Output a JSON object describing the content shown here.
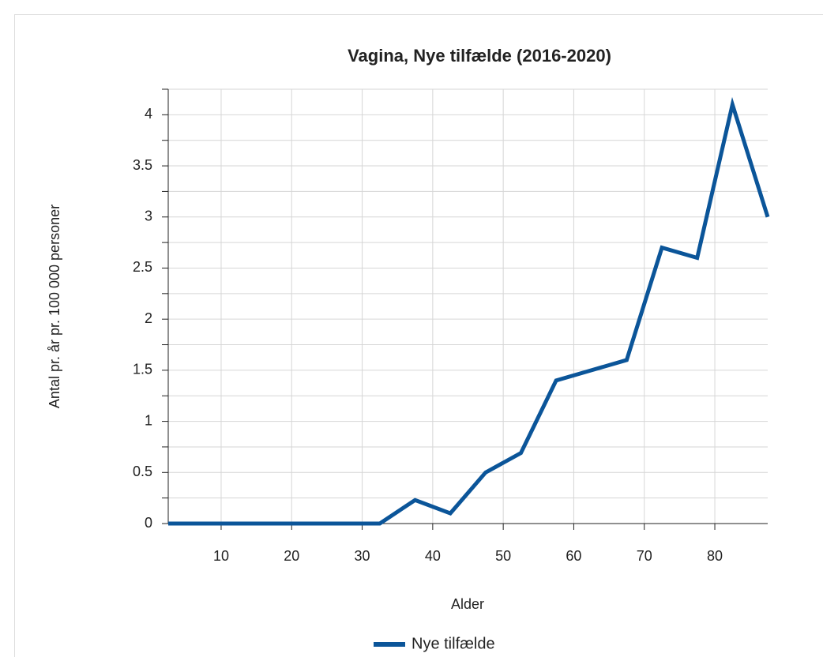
{
  "chart_data": {
    "type": "line",
    "title": "Vagina, Nye tilfælde (2016-2020)",
    "xlabel": "Alder",
    "ylabel": "Antal pr. år pr. 100 000 personer",
    "x": [
      2.5,
      7.5,
      12.5,
      17.5,
      22.5,
      27.5,
      32.5,
      37.5,
      42.5,
      47.5,
      52.5,
      57.5,
      62.5,
      67.5,
      72.5,
      77.5,
      82.5,
      87.5
    ],
    "series": [
      {
        "name": "Nye tilfælde",
        "color": "#0b5599",
        "values": [
          0,
          0,
          0,
          0,
          0,
          0,
          0,
          0.23,
          0.1,
          0.5,
          0.69,
          1.4,
          1.5,
          1.6,
          2.7,
          2.6,
          4.1,
          3.0
        ]
      }
    ],
    "xlim": [
      2.5,
      87.5
    ],
    "xticks": [
      10,
      20,
      30,
      40,
      50,
      60,
      70,
      80
    ],
    "ylim": [
      0,
      4.25
    ],
    "yticks": [
      0,
      0.5,
      1,
      1.5,
      2,
      2.5,
      3,
      3.5,
      4
    ],
    "yticks_minor": [
      0.25,
      0.75,
      1.25,
      1.75,
      2.25,
      2.75,
      3.25,
      3.75,
      4.25
    ],
    "grid": true,
    "legend": "bottom"
  }
}
